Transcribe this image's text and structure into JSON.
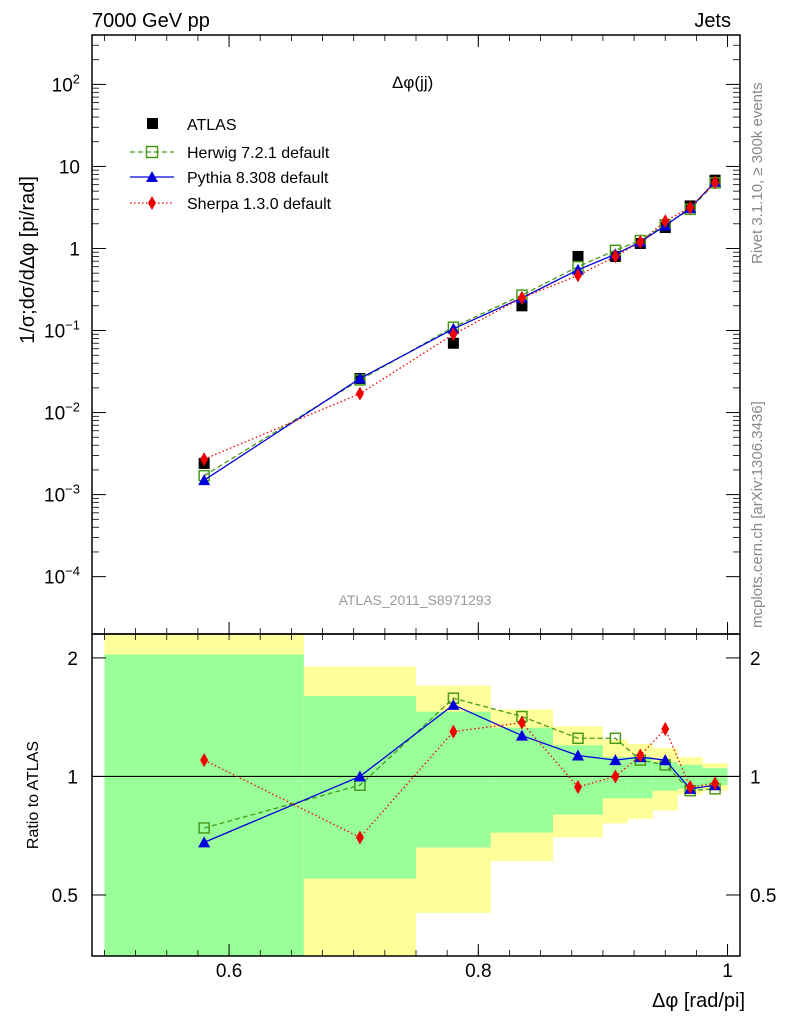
{
  "header": {
    "left": "7000 GeV pp",
    "right": "Jets"
  },
  "side": {
    "rivet": "Rivet 3.1.10, ≥ 300k events",
    "mcplots": "mcplots.cern.ch [arXiv:1306.3436]"
  },
  "plot_title": "Δφ(jj)",
  "watermark": "ATLAS_2011_S8971293",
  "ylabel_top": "1/σ;dσ/dΔφ [pi/rad]",
  "ylabel_bottom": "Ratio to ATLAS",
  "xlabel": "Δφ [rad/pi]",
  "colors": {
    "data": "#000000",
    "herwig": "#4a9a1a",
    "pythia": "#0000dd",
    "sherpa": "#ee0000",
    "band_inner": "#99ff99",
    "band_outer": "#ffff99"
  },
  "chart_data": [
    {
      "type": "scatter",
      "name": "main",
      "yscale": "log",
      "xlim": [
        0.49,
        1.01
      ],
      "ylim": [
        2e-05,
        400
      ],
      "x_ticks": [
        "0.6",
        "0.8",
        "1"
      ],
      "y_ticks": [
        {
          "base": "10",
          "exp": "2"
        },
        {
          "base": "10",
          "exp": ""
        },
        {
          "base": "1",
          "exp": ""
        },
        {
          "base": "10",
          "exp": "−1"
        },
        {
          "base": "10",
          "exp": "−2"
        },
        {
          "base": "10",
          "exp": "−3"
        },
        {
          "base": "10",
          "exp": "−4"
        }
      ],
      "y_tick_values": [
        100,
        10,
        1,
        0.1,
        0.01,
        0.001,
        0.0001
      ],
      "x": [
        0.58,
        0.705,
        0.78,
        0.835,
        0.88,
        0.91,
        0.93,
        0.95,
        0.97,
        0.99
      ],
      "series": [
        {
          "name": "ATLAS",
          "values": [
            0.0024,
            0.026,
            0.07,
            0.2,
            0.8,
            0.8,
            1.15,
            1.8,
            3.3,
            6.8
          ]
        },
        {
          "name": "Herwig 7.2.1 default",
          "values": [
            0.0017,
            0.025,
            0.11,
            0.27,
            0.6,
            0.95,
            1.25,
            1.95,
            3.0,
            6.3
          ]
        },
        {
          "name": "Pythia 8.308 default",
          "values": [
            0.0015,
            0.026,
            0.105,
            0.25,
            0.55,
            0.85,
            1.2,
            1.9,
            3.1,
            6.5
          ]
        },
        {
          "name": "Sherpa 1.3.0 default",
          "values": [
            0.0027,
            0.017,
            0.09,
            0.25,
            0.47,
            0.8,
            1.2,
            2.15,
            3.15,
            6.4
          ]
        }
      ]
    },
    {
      "type": "line",
      "name": "ratio",
      "xlim": [
        0.49,
        1.01
      ],
      "ylim": [
        0.35,
        2.3
      ],
      "x_ticks": [
        "0.6",
        "0.8",
        "1"
      ],
      "y_ticks": [
        "2",
        "1",
        "0.5"
      ],
      "y_tick_values": [
        2,
        1,
        0.5
      ],
      "x": [
        0.58,
        0.705,
        0.78,
        0.835,
        0.88,
        0.91,
        0.93,
        0.95,
        0.97,
        0.99
      ],
      "series": [
        {
          "name": "Herwig 7.2.1 default",
          "values": [
            0.74,
            0.95,
            1.58,
            1.42,
            1.25,
            1.25,
            1.1,
            1.07,
            0.92,
            0.93
          ]
        },
        {
          "name": "Pythia 8.308 default",
          "values": [
            0.68,
            1.0,
            1.52,
            1.27,
            1.13,
            1.1,
            1.12,
            1.1,
            0.93,
            0.95
          ]
        },
        {
          "name": "Sherpa 1.3.0 default",
          "values": [
            1.1,
            0.7,
            1.3,
            1.37,
            0.94,
            1.0,
            1.13,
            1.32,
            0.94,
            0.96
          ]
        }
      ],
      "bands": [
        {
          "x0": 0.5,
          "x1": 0.66,
          "inner": [
            0.35,
            2.04
          ],
          "outer": [
            0.35,
            2.4
          ]
        },
        {
          "x0": 0.66,
          "x1": 0.75,
          "inner": [
            0.55,
            1.6
          ],
          "outer": [
            0.35,
            1.9
          ]
        },
        {
          "x0": 0.75,
          "x1": 0.81,
          "inner": [
            0.66,
            1.46
          ],
          "outer": [
            0.45,
            1.7
          ]
        },
        {
          "x0": 0.81,
          "x1": 0.86,
          "inner": [
            0.72,
            1.33
          ],
          "outer": [
            0.61,
            1.48
          ]
        },
        {
          "x0": 0.86,
          "x1": 0.9,
          "inner": [
            0.8,
            1.2
          ],
          "outer": [
            0.7,
            1.34
          ]
        },
        {
          "x0": 0.9,
          "x1": 0.92,
          "inner": [
            0.88,
            1.12
          ],
          "outer": [
            0.76,
            1.24
          ]
        },
        {
          "x0": 0.92,
          "x1": 0.94,
          "inner": [
            0.88,
            1.12
          ],
          "outer": [
            0.78,
            1.21
          ]
        },
        {
          "x0": 0.94,
          "x1": 0.96,
          "inner": [
            0.92,
            1.09
          ],
          "outer": [
            0.82,
            1.18
          ]
        },
        {
          "x0": 0.96,
          "x1": 0.98,
          "inner": [
            0.93,
            1.07
          ],
          "outer": [
            0.9,
            1.12
          ]
        },
        {
          "x0": 0.98,
          "x1": 1.0,
          "inner": [
            0.95,
            1.05
          ],
          "outer": [
            0.92,
            1.08
          ]
        }
      ]
    }
  ]
}
